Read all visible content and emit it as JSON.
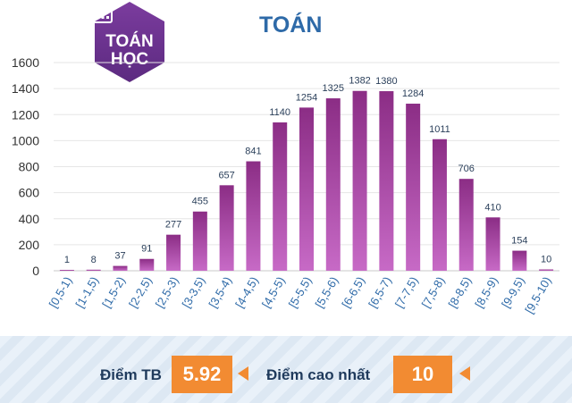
{
  "badge": {
    "line1": "TOÁN",
    "line2": "HỌC",
    "icon": "calculator-icon"
  },
  "footer": {
    "avg_label": "Điểm TB",
    "avg_value": "5.92",
    "max_label": "Điểm cao nhất",
    "max_value": "10"
  },
  "colors": {
    "bar_top": "#8b2d85",
    "bar_bottom": "#c76ac6",
    "badge": "#6f3593",
    "title": "#2e6aa8",
    "accent": "#f28b32"
  },
  "chart_data": {
    "type": "bar",
    "title": "TOÁN",
    "categories": [
      "[0,5-1)",
      "[1-1,5)",
      "[1,5-2)",
      "[2-2,5)",
      "[2,5-3)",
      "[3-3,5)",
      "[3,5-4)",
      "[4-4,5)",
      "[4,5-5)",
      "[5-5,5)",
      "[5,5-6)",
      "[6-6,5)",
      "[6,5-7)",
      "[7-7,5)",
      "[7,5-8)",
      "[8-8,5)",
      "[8,5-9)",
      "[9-9,5)",
      "[9,5-10)"
    ],
    "values": [
      1,
      8,
      37,
      91,
      277,
      455,
      657,
      841,
      1140,
      1254,
      1325,
      1382,
      1380,
      1284,
      1011,
      706,
      410,
      154,
      10
    ],
    "ylim": [
      0,
      1600
    ],
    "yticks": [
      0,
      200,
      400,
      600,
      800,
      1000,
      1200,
      1400,
      1600
    ],
    "grid": true,
    "legend": "none"
  }
}
